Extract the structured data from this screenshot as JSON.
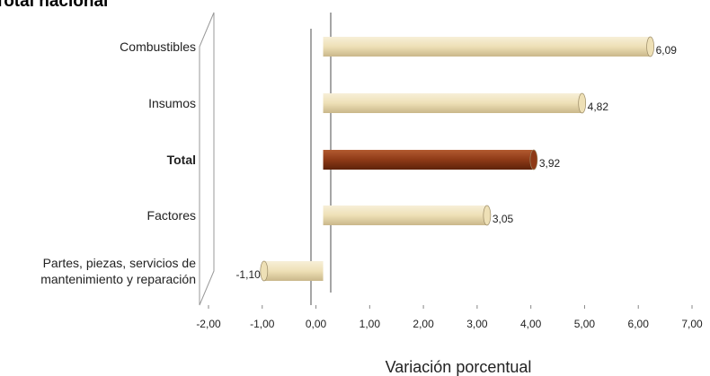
{
  "chart_data": {
    "type": "bar",
    "orientation": "horizontal",
    "title": "Total nacional",
    "x_label": "Variación porcentual",
    "categories": [
      "Combustibles",
      "Insumos",
      "Total",
      "Factores",
      "Partes, piezas, servicios de mantenimiento y reparación"
    ],
    "values": [
      6.09,
      4.82,
      3.92,
      3.05,
      -1.1
    ],
    "value_labels": [
      "6,09",
      "4,82",
      "3,92",
      "3,05",
      "-1,10"
    ],
    "colors": [
      "#eee0b6",
      "#eee0b6",
      "#8e3a17",
      "#eee0b6",
      "#eee0b6"
    ],
    "bold_category": "Total",
    "xlim": [
      -2,
      7
    ],
    "xticks": [
      {
        "value": -2,
        "label": "-2,00"
      },
      {
        "value": -1,
        "label": "-1,00"
      },
      {
        "value": 0,
        "label": "0,00"
      },
      {
        "value": 1,
        "label": "1,00"
      },
      {
        "value": 2,
        "label": "2,00"
      },
      {
        "value": 3,
        "label": "3,00"
      },
      {
        "value": 4,
        "label": "4,00"
      },
      {
        "value": 5,
        "label": "5,00"
      },
      {
        "value": 6,
        "label": "6,00"
      },
      {
        "value": 7,
        "label": "7,00"
      }
    ]
  }
}
